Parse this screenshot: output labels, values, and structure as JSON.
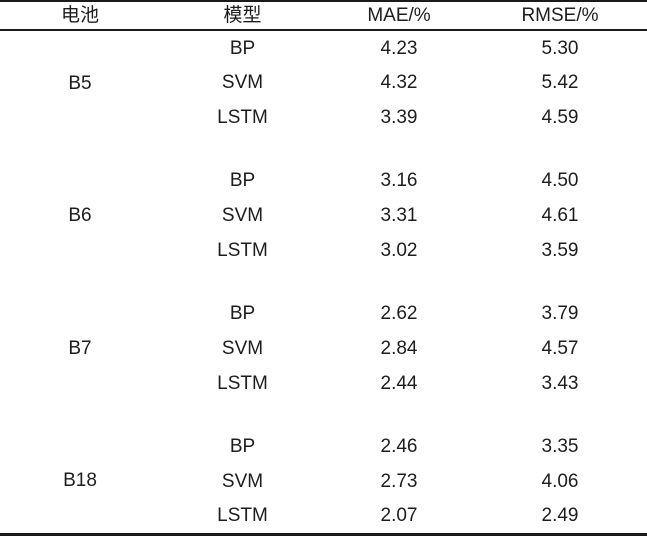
{
  "table": {
    "columns": {
      "battery": "电池",
      "model": "模型",
      "mae": "MAE/%",
      "rmse": "RMSE/%"
    },
    "groups": [
      {
        "battery": "B5",
        "rows": [
          {
            "model": "BP",
            "mae": "4.23",
            "rmse": "5.30"
          },
          {
            "model": "SVM",
            "mae": "4.32",
            "rmse": "5.42"
          },
          {
            "model": "LSTM",
            "mae": "3.39",
            "rmse": "4.59"
          }
        ]
      },
      {
        "battery": "B6",
        "rows": [
          {
            "model": "BP",
            "mae": "3.16",
            "rmse": "4.50"
          },
          {
            "model": "SVM",
            "mae": "3.31",
            "rmse": "4.61"
          },
          {
            "model": "LSTM",
            "mae": "3.02",
            "rmse": "3.59"
          }
        ]
      },
      {
        "battery": "B7",
        "rows": [
          {
            "model": "BP",
            "mae": "2.62",
            "rmse": "3.79"
          },
          {
            "model": "SVM",
            "mae": "2.84",
            "rmse": "4.57"
          },
          {
            "model": "LSTM",
            "mae": "2.44",
            "rmse": "3.43"
          }
        ]
      },
      {
        "battery": "B18",
        "rows": [
          {
            "model": "BP",
            "mae": "2.46",
            "rmse": "3.35"
          },
          {
            "model": "SVM",
            "mae": "2.73",
            "rmse": "4.06"
          },
          {
            "model": "LSTM",
            "mae": "2.07",
            "rmse": "2.49"
          }
        ]
      }
    ]
  },
  "chart_data": {
    "type": "table",
    "title": "",
    "columns": [
      "电池",
      "模型",
      "MAE/%",
      "RMSE/%"
    ],
    "rows": [
      [
        "B5",
        "BP",
        4.23,
        5.3
      ],
      [
        "B5",
        "SVM",
        4.32,
        5.42
      ],
      [
        "B5",
        "LSTM",
        3.39,
        4.59
      ],
      [
        "B6",
        "BP",
        3.16,
        4.5
      ],
      [
        "B6",
        "SVM",
        3.31,
        4.61
      ],
      [
        "B6",
        "LSTM",
        3.02,
        3.59
      ],
      [
        "B7",
        "BP",
        2.62,
        3.79
      ],
      [
        "B7",
        "SVM",
        2.84,
        4.57
      ],
      [
        "B7",
        "LSTM",
        2.44,
        3.43
      ],
      [
        "B18",
        "BP",
        2.46,
        3.35
      ],
      [
        "B18",
        "SVM",
        2.73,
        4.06
      ],
      [
        "B18",
        "LSTM",
        2.07,
        2.49
      ]
    ],
    "colors": {
      "text": "#1d1d1d",
      "rule": "#1a1a1a",
      "background": "#ffffff"
    }
  }
}
